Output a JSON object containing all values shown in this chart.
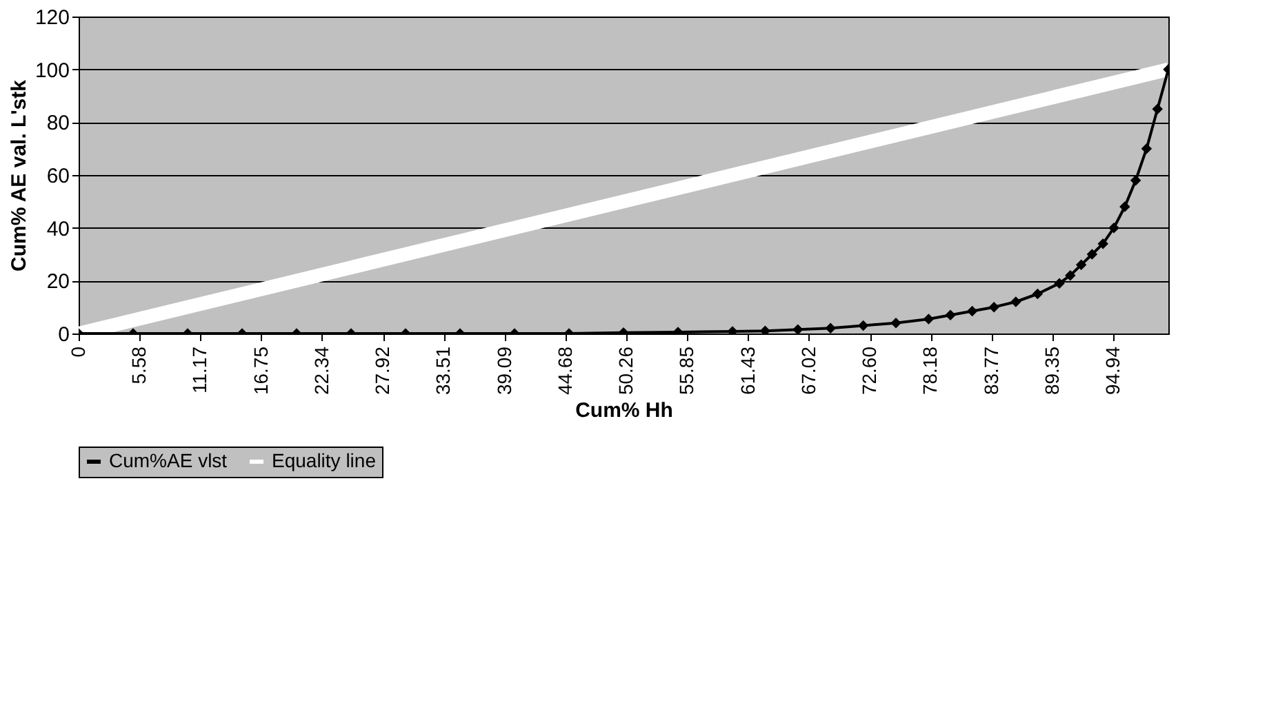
{
  "chart_data": {
    "type": "line",
    "xlabel": "Cum% Hh",
    "ylabel": "Cum% AE val. L'stk",
    "xlim": [
      0,
      100
    ],
    "ylim": [
      0,
      120
    ],
    "yticks": [
      0,
      20,
      40,
      60,
      80,
      100,
      120
    ],
    "xticks": [
      0,
      5.58,
      11.17,
      16.75,
      22.34,
      27.92,
      33.51,
      39.09,
      44.68,
      50.26,
      55.85,
      61.43,
      67.02,
      {
        "value": 72.6,
        "label": "72.60"
      },
      78.18,
      83.77,
      89.35,
      94.94
    ],
    "grid": "y",
    "legend": "bottom",
    "marker": "diamond",
    "series": [
      {
        "name": "Cum%AE vlst",
        "color": "#000000",
        "x": [
          0,
          5,
          10,
          15,
          20,
          25,
          30,
          35,
          40,
          45,
          50,
          55,
          60,
          63,
          66,
          69,
          72,
          75,
          78,
          80,
          82,
          84,
          86,
          88,
          90,
          91,
          92,
          93,
          94,
          95,
          96,
          97,
          98,
          99,
          100
        ],
        "values": [
          0,
          0,
          0,
          0,
          0,
          0,
          0,
          0,
          0,
          0,
          0.3,
          0.5,
          0.8,
          1,
          1.5,
          2,
          3,
          4,
          5.5,
          7,
          8.5,
          10,
          12,
          15,
          19,
          22,
          26,
          30,
          34,
          40,
          48,
          58,
          70,
          85,
          100
        ]
      },
      {
        "name": "Equality line",
        "color": "#ffffff",
        "type": "line",
        "marker": "none",
        "x": [
          0,
          100
        ],
        "values": [
          0,
          100
        ]
      }
    ]
  }
}
